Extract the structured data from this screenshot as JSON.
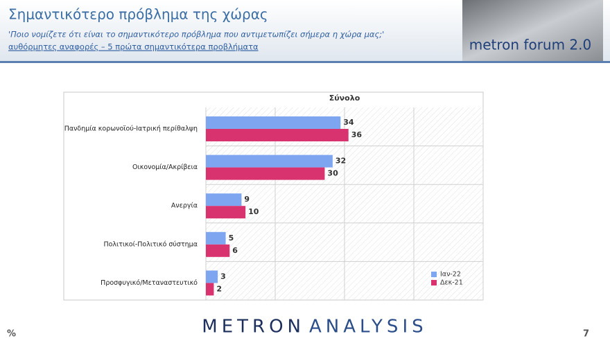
{
  "header": {
    "title": "Σημαντικότερο πρόβλημα της χώρας",
    "subtitle": "'Ποιο νομίζετε ότι  είναι το σημαντικότερο πρόβλημα που αντιμετωπίζει σήμερα η χώρα μας;'",
    "note": "αυθόρμητες αναφορές – 5 πρώτα σημαντικότερα προβλήματα"
  },
  "logo": {
    "text": "metron forum 2.0"
  },
  "chart_data": {
    "type": "hbar",
    "title": "Σύνολο",
    "categories": [
      "Πανδημία κορωνοϊού-Ιατρική περίθαλψη",
      "Οικονομία/Ακρίβεια",
      "Ανεργία",
      "Πολιτικοί-Πολιτικό σύστημα",
      "Προσφυγικό/Μεταναστευτικό"
    ],
    "series": [
      {
        "name": "Ιαν-22",
        "color": "#7ea6f0",
        "values": [
          34,
          32,
          9,
          5,
          3
        ]
      },
      {
        "name": "Δεκ-21",
        "color": "#d8336f",
        "values": [
          36,
          30,
          10,
          6,
          2
        ]
      }
    ],
    "xlim": [
      0,
      70
    ],
    "xticks": [
      0,
      17.5,
      35,
      52.5,
      70
    ],
    "grid": true,
    "legend": "lower right"
  },
  "footer": {
    "brand_1": "METRON",
    "brand_2": "ANALYSIS",
    "unit": "%",
    "page": "7"
  }
}
